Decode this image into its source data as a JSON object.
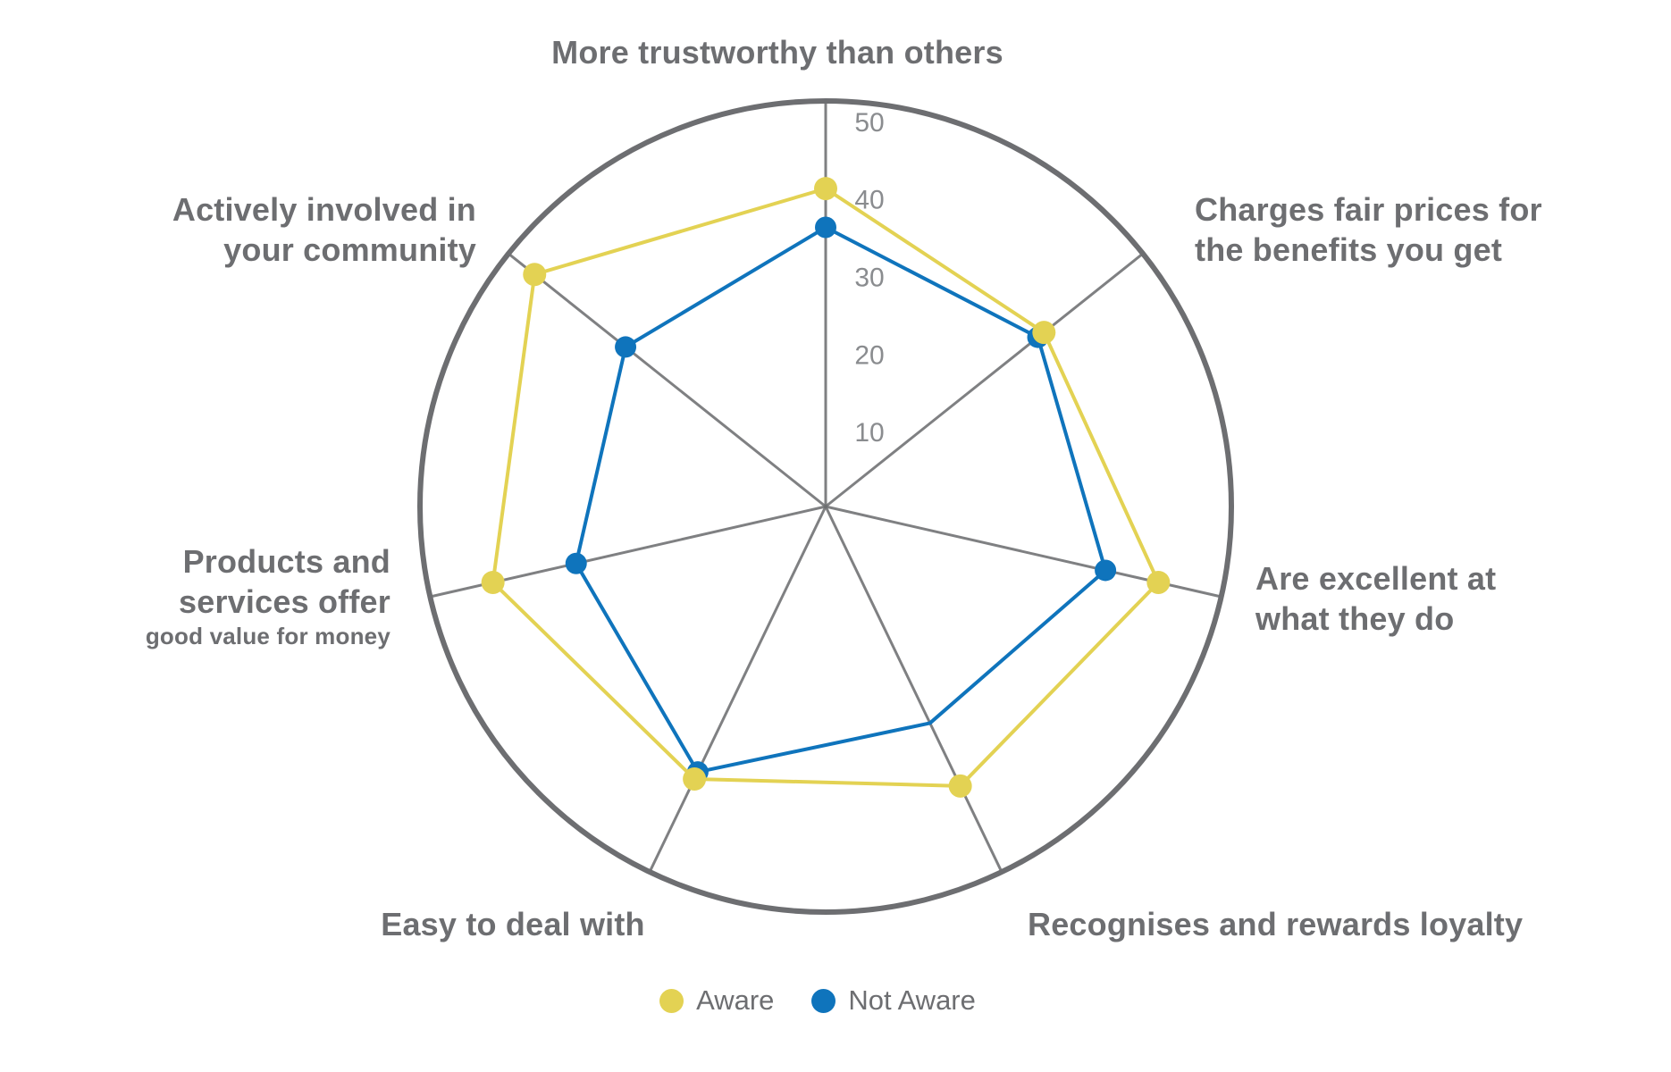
{
  "chart_data": {
    "type": "radar",
    "axes_count": 7,
    "categories": [
      "More trustworthy than others",
      "Charges fair prices for the benefits you get",
      "Are excellent at what they do",
      "Recognises and rewards loyalty",
      "Easy to deal with",
      "Products and services offer good value for money",
      "Actively involved in your community"
    ],
    "series": [
      {
        "name": "Aware",
        "color": "#e3d253",
        "marker_radius": 13,
        "values": [
          41,
          36,
          44,
          40,
          39,
          44,
          48
        ],
        "point_markers": [
          true,
          true,
          true,
          true,
          true,
          true,
          true
        ]
      },
      {
        "name": "Not Aware",
        "color": "#0f74bc",
        "marker_radius": 12,
        "values": [
          36,
          35,
          37,
          31,
          38,
          33,
          33
        ],
        "point_markers": [
          true,
          true,
          true,
          false,
          true,
          true,
          true
        ]
      }
    ],
    "radial_axis": {
      "ticks": [
        10,
        20,
        30,
        40,
        50
      ],
      "min": 0,
      "max": 50,
      "tick_label_color": "#8a8c8f"
    },
    "grid": "single outer circle with 7 spokes, no inner rings",
    "legend_position": "bottom-center",
    "start_angle": "top",
    "direction": "clockwise"
  },
  "labels": {
    "trustworthy": {
      "lines": [
        "More trustworthy than others"
      ]
    },
    "fair_prices": {
      "lines": [
        "Charges fair prices for",
        "the benefits you get"
      ]
    },
    "excellent": {
      "lines": [
        "Are excellent at",
        "what they do"
      ]
    },
    "loyalty": {
      "lines": [
        "Recognises and rewards loyalty"
      ]
    },
    "easy": {
      "lines": [
        "Easy to deal with"
      ]
    },
    "value": {
      "lines": [
        "Products and",
        "services offer"
      ],
      "subline": "good value for money"
    },
    "community": {
      "lines": [
        "Actively involved in",
        "your community"
      ]
    }
  },
  "legend": {
    "items": [
      {
        "label": "Aware",
        "color": "#e3d253"
      },
      {
        "label": "Not Aware",
        "color": "#0f74bc"
      }
    ]
  },
  "colors": {
    "aware": "#e3d253",
    "not_aware": "#0f74bc",
    "grid": "#6d6e71",
    "label_text": "#6d6e71",
    "tick_text": "#8a8c8f",
    "background": "#ffffff"
  }
}
